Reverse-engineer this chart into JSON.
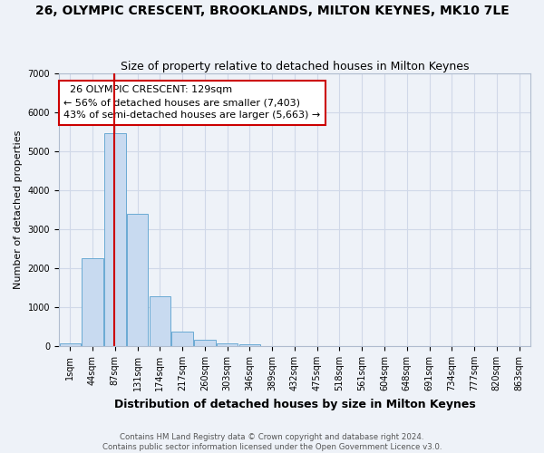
{
  "title": "26, OLYMPIC CRESCENT, BROOKLANDS, MILTON KEYNES, MK10 7LE",
  "subtitle": "Size of property relative to detached houses in Milton Keynes",
  "xlabel": "Distribution of detached houses by size in Milton Keynes",
  "ylabel": "Number of detached properties",
  "footnote1": "Contains HM Land Registry data © Crown copyright and database right 2024.",
  "footnote2": "Contains public sector information licensed under the Open Government Licence v3.0.",
  "categories": [
    "1sqm",
    "44sqm",
    "87sqm",
    "131sqm",
    "174sqm",
    "217sqm",
    "260sqm",
    "303sqm",
    "346sqm",
    "389sqm",
    "432sqm",
    "475sqm",
    "518sqm",
    "561sqm",
    "604sqm",
    "648sqm",
    "691sqm",
    "734sqm",
    "777sqm",
    "820sqm",
    "863sqm"
  ],
  "values": [
    60,
    2260,
    5450,
    3380,
    1280,
    370,
    150,
    80,
    50,
    10,
    0,
    0,
    0,
    0,
    0,
    0,
    0,
    0,
    0,
    0,
    0
  ],
  "bar_color": "#c8daf0",
  "bar_edge_color": "#6aaad4",
  "grid_color": "#d0d8e8",
  "bg_color": "#eef2f8",
  "annotation_box_text": "  26 OLYMPIC CRESCENT: 129sqm\n← 56% of detached houses are smaller (7,403)\n43% of semi-detached houses are larger (5,663) →",
  "annotation_box_color": "#cc0000",
  "property_line_x": 1.975,
  "ylim": [
    0,
    7000
  ],
  "yticks": [
    0,
    1000,
    2000,
    3000,
    4000,
    5000,
    6000,
    7000
  ],
  "title_fontsize": 10,
  "subtitle_fontsize": 9,
  "annotation_fontsize": 8,
  "tick_fontsize": 7,
  "ylabel_fontsize": 8,
  "xlabel_fontsize": 9
}
